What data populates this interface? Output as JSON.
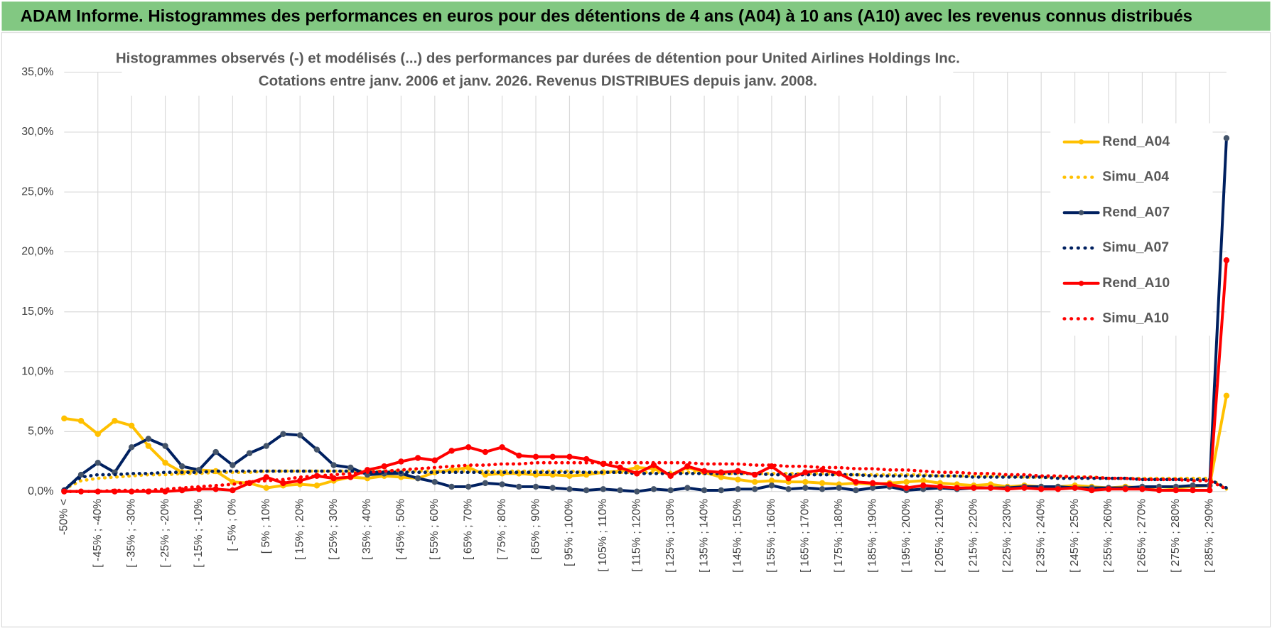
{
  "banner": "ADAM Informe. Histogrammes des performances en euros pour des détentions de 4 ans (A04) à 10 ans (A10) avec les revenus connus distribués",
  "chart_data": {
    "type": "line",
    "title": "Histogrammes observés (-) et modélisés (...) des performances par durées de détention pour United Airlines Holdings Inc.",
    "subtitle": "Cotations entre janv. 2006 et janv. 2026. Revenus DISTRIBUES depuis janv. 2008.",
    "categories": [
      "-50% <",
      null,
      "[ -45% ; -40%",
      null,
      "[ -35% ; -30%",
      null,
      "[ -25% ; -20%",
      null,
      "[ -15% ; -10%",
      null,
      "[ -5% ; 0%",
      null,
      "[ 5% ; 10%",
      null,
      "[ 15% ; 20%",
      null,
      "[ 25% ; 30%",
      null,
      "[ 35% ; 40%",
      null,
      "[ 45% ; 50%",
      null,
      "[ 55% ; 60%",
      null,
      "[ 65% ; 70%",
      null,
      "[ 75% ; 80%",
      null,
      "[ 85% ; 90%",
      null,
      "[ 95% ; 100%",
      null,
      "[ 105% ; 110%",
      null,
      "[ 115% ; 120%",
      null,
      "[ 125% ; 130%",
      null,
      "[ 135% ; 140%",
      null,
      "[ 145% ; 150%",
      null,
      "[ 155% ; 160%",
      null,
      "[ 165% ; 170%",
      null,
      "[ 175% ; 180%",
      null,
      "[ 185% ; 190%",
      null,
      "[ 195% ; 200%",
      null,
      "[ 205% ; 210%",
      null,
      "[ 215% ; 220%",
      null,
      "[ 225% ; 230%",
      null,
      "[ 235% ; 240%",
      null,
      "[ 245% ; 250%",
      null,
      "[ 255% ; 260%",
      null,
      "[ 265% ; 270%",
      null,
      "[ 275% ; 280%",
      null,
      "[ 285% ; 290%",
      null
    ],
    "ylim": [
      0,
      35
    ],
    "yticks": [
      {
        "value": 0,
        "label": "0,0%"
      },
      {
        "value": 5,
        "label": "5,0%"
      },
      {
        "value": 10,
        "label": "10,0%"
      },
      {
        "value": 15,
        "label": "15,0%"
      },
      {
        "value": 20,
        "label": "20,0%"
      },
      {
        "value": 25,
        "label": "25,0%"
      },
      {
        "value": 30,
        "label": "30,0%"
      },
      {
        "value": 35,
        "label": "35,0%"
      }
    ],
    "grid": true,
    "legend": "right",
    "series": [
      {
        "name": "Rend_A04",
        "color": "#ffc000",
        "style": "solid",
        "markers": true,
        "values": [
          6.1,
          5.9,
          4.8,
          5.9,
          5.5,
          3.8,
          2.4,
          1.6,
          1.8,
          1.7,
          0.8,
          0.7,
          0.3,
          0.5,
          0.6,
          0.5,
          0.9,
          1.2,
          1.1,
          1.3,
          1.2,
          1.1,
          1.6,
          1.8,
          2.0,
          1.4,
          1.5,
          1.5,
          1.4,
          1.4,
          1.3,
          1.4,
          1.6,
          1.7,
          2.0,
          1.9,
          1.4,
          2.0,
          1.6,
          1.2,
          1.0,
          0.8,
          0.9,
          0.8,
          0.8,
          0.7,
          0.6,
          0.7,
          0.6,
          0.7,
          0.8,
          0.9,
          0.7,
          0.6,
          0.5,
          0.6,
          0.4,
          0.5,
          0.4,
          0.4,
          0.5,
          0.4,
          0.3,
          0.4,
          0.3,
          0.4,
          0.3,
          0.4,
          0.5,
          8.0
        ]
      },
      {
        "name": "Simu_A04",
        "color": "#ffc000",
        "style": "dotted",
        "markers": false,
        "values": [
          0.2,
          0.9,
          1.1,
          1.2,
          1.3,
          1.4,
          1.4,
          1.5,
          1.5,
          1.6,
          1.6,
          1.6,
          1.7,
          1.7,
          1.7,
          1.7,
          1.7,
          1.7,
          1.7,
          1.7,
          1.7,
          1.7,
          1.7,
          1.7,
          1.7,
          1.7,
          1.7,
          1.7,
          1.7,
          1.7,
          1.7,
          1.6,
          1.6,
          1.6,
          1.6,
          1.6,
          1.6,
          1.6,
          1.6,
          1.5,
          1.5,
          1.5,
          1.5,
          1.5,
          1.5,
          1.5,
          1.4,
          1.4,
          1.4,
          1.4,
          1.4,
          1.4,
          1.3,
          1.3,
          1.3,
          1.3,
          1.3,
          1.2,
          1.2,
          1.2,
          1.2,
          1.2,
          1.1,
          1.1,
          1.1,
          1.1,
          1.1,
          1.1,
          1.1,
          0.2
        ]
      },
      {
        "name": "Rend_A07",
        "color": "#002060",
        "marker_color": "#44546a",
        "style": "solid",
        "markers": true,
        "values": [
          0.1,
          1.4,
          2.4,
          1.6,
          3.7,
          4.4,
          3.8,
          2.1,
          1.8,
          3.3,
          2.2,
          3.2,
          3.8,
          4.8,
          4.7,
          3.5,
          2.2,
          2.0,
          1.4,
          1.5,
          1.5,
          1.1,
          0.8,
          0.4,
          0.4,
          0.7,
          0.6,
          0.4,
          0.4,
          0.3,
          0.2,
          0.1,
          0.2,
          0.1,
          0.0,
          0.2,
          0.1,
          0.3,
          0.1,
          0.1,
          0.2,
          0.2,
          0.5,
          0.2,
          0.3,
          0.2,
          0.3,
          0.1,
          0.3,
          0.4,
          0.1,
          0.2,
          0.3,
          0.2,
          0.3,
          0.3,
          0.3,
          0.4,
          0.4,
          0.4,
          0.3,
          0.3,
          0.3,
          0.3,
          0.4,
          0.4,
          0.4,
          0.5,
          0.5,
          29.5
        ]
      },
      {
        "name": "Simu_A07",
        "color": "#002060",
        "style": "dotted",
        "markers": false,
        "values": [
          0.2,
          1.2,
          1.4,
          1.4,
          1.5,
          1.5,
          1.6,
          1.6,
          1.6,
          1.7,
          1.7,
          1.7,
          1.7,
          1.7,
          1.7,
          1.7,
          1.7,
          1.7,
          1.6,
          1.6,
          1.6,
          1.6,
          1.6,
          1.6,
          1.6,
          1.6,
          1.6,
          1.6,
          1.6,
          1.6,
          1.6,
          1.6,
          1.6,
          1.6,
          1.5,
          1.5,
          1.5,
          1.5,
          1.5,
          1.5,
          1.5,
          1.5,
          1.4,
          1.4,
          1.4,
          1.4,
          1.4,
          1.4,
          1.3,
          1.3,
          1.3,
          1.3,
          1.3,
          1.3,
          1.2,
          1.2,
          1.2,
          1.2,
          1.2,
          1.1,
          1.1,
          1.1,
          1.1,
          1.1,
          1.0,
          1.0,
          1.0,
          1.0,
          1.0,
          0.3
        ]
      },
      {
        "name": "Rend_A10",
        "color": "#ff0000",
        "style": "solid",
        "markers": true,
        "values": [
          0.0,
          0.0,
          0.0,
          0.0,
          0.0,
          0.0,
          0.0,
          0.1,
          0.2,
          0.2,
          0.1,
          0.7,
          1.2,
          0.7,
          0.9,
          1.3,
          1.1,
          1.2,
          1.8,
          2.1,
          2.5,
          2.8,
          2.6,
          3.4,
          3.7,
          3.3,
          3.7,
          3.0,
          2.9,
          2.9,
          2.9,
          2.7,
          2.3,
          2.0,
          1.5,
          2.2,
          1.3,
          2.1,
          1.7,
          1.6,
          1.7,
          1.4,
          2.1,
          1.1,
          1.6,
          1.8,
          1.5,
          0.8,
          0.7,
          0.6,
          0.3,
          0.5,
          0.4,
          0.3,
          0.3,
          0.3,
          0.2,
          0.3,
          0.2,
          0.2,
          0.3,
          0.1,
          0.2,
          0.2,
          0.2,
          0.1,
          0.1,
          0.1,
          0.1,
          19.3
        ]
      },
      {
        "name": "Simu_A10",
        "color": "#ff0000",
        "style": "dotted",
        "markers": false,
        "values": [
          0.0,
          0.0,
          0.0,
          0.1,
          0.1,
          0.1,
          0.2,
          0.3,
          0.4,
          0.5,
          0.6,
          0.8,
          0.9,
          1.0,
          1.2,
          1.3,
          1.4,
          1.5,
          1.6,
          1.7,
          1.8,
          1.9,
          2.0,
          2.1,
          2.2,
          2.2,
          2.3,
          2.3,
          2.4,
          2.4,
          2.4,
          2.4,
          2.4,
          2.4,
          2.4,
          2.4,
          2.4,
          2.4,
          2.3,
          2.3,
          2.3,
          2.2,
          2.2,
          2.1,
          2.1,
          2.0,
          2.0,
          1.9,
          1.9,
          1.8,
          1.8,
          1.7,
          1.6,
          1.6,
          1.5,
          1.5,
          1.4,
          1.4,
          1.3,
          1.3,
          1.2,
          1.2,
          1.1,
          1.1,
          1.0,
          1.0,
          1.0,
          0.9,
          0.9,
          0.2
        ]
      }
    ]
  }
}
